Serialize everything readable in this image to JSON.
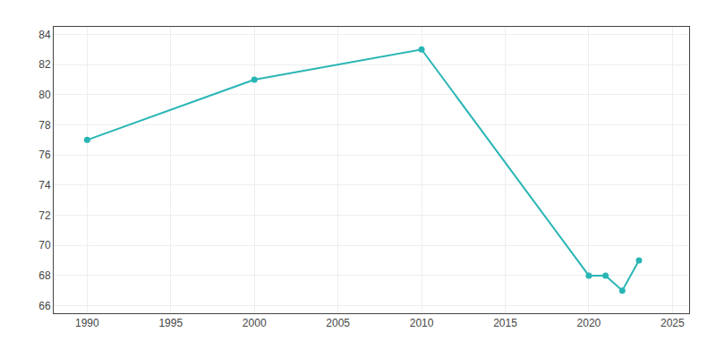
{
  "chart_data": {
    "type": "line",
    "x": [
      1990,
      2000,
      2010,
      2020,
      2021,
      2022,
      2023
    ],
    "values": [
      77,
      81,
      83,
      68,
      68,
      67,
      69
    ],
    "color": "#2ab5b5",
    "marker": "circle",
    "xlim": [
      1988,
      2026
    ],
    "xticks": [
      1990,
      1995,
      2000,
      2005,
      2010,
      2015,
      2020,
      2025
    ],
    "ylim": [
      65.5,
      84.5
    ],
    "yticks": [
      66,
      68,
      70,
      72,
      74,
      76,
      78,
      80,
      82,
      84
    ],
    "grid": true
  }
}
